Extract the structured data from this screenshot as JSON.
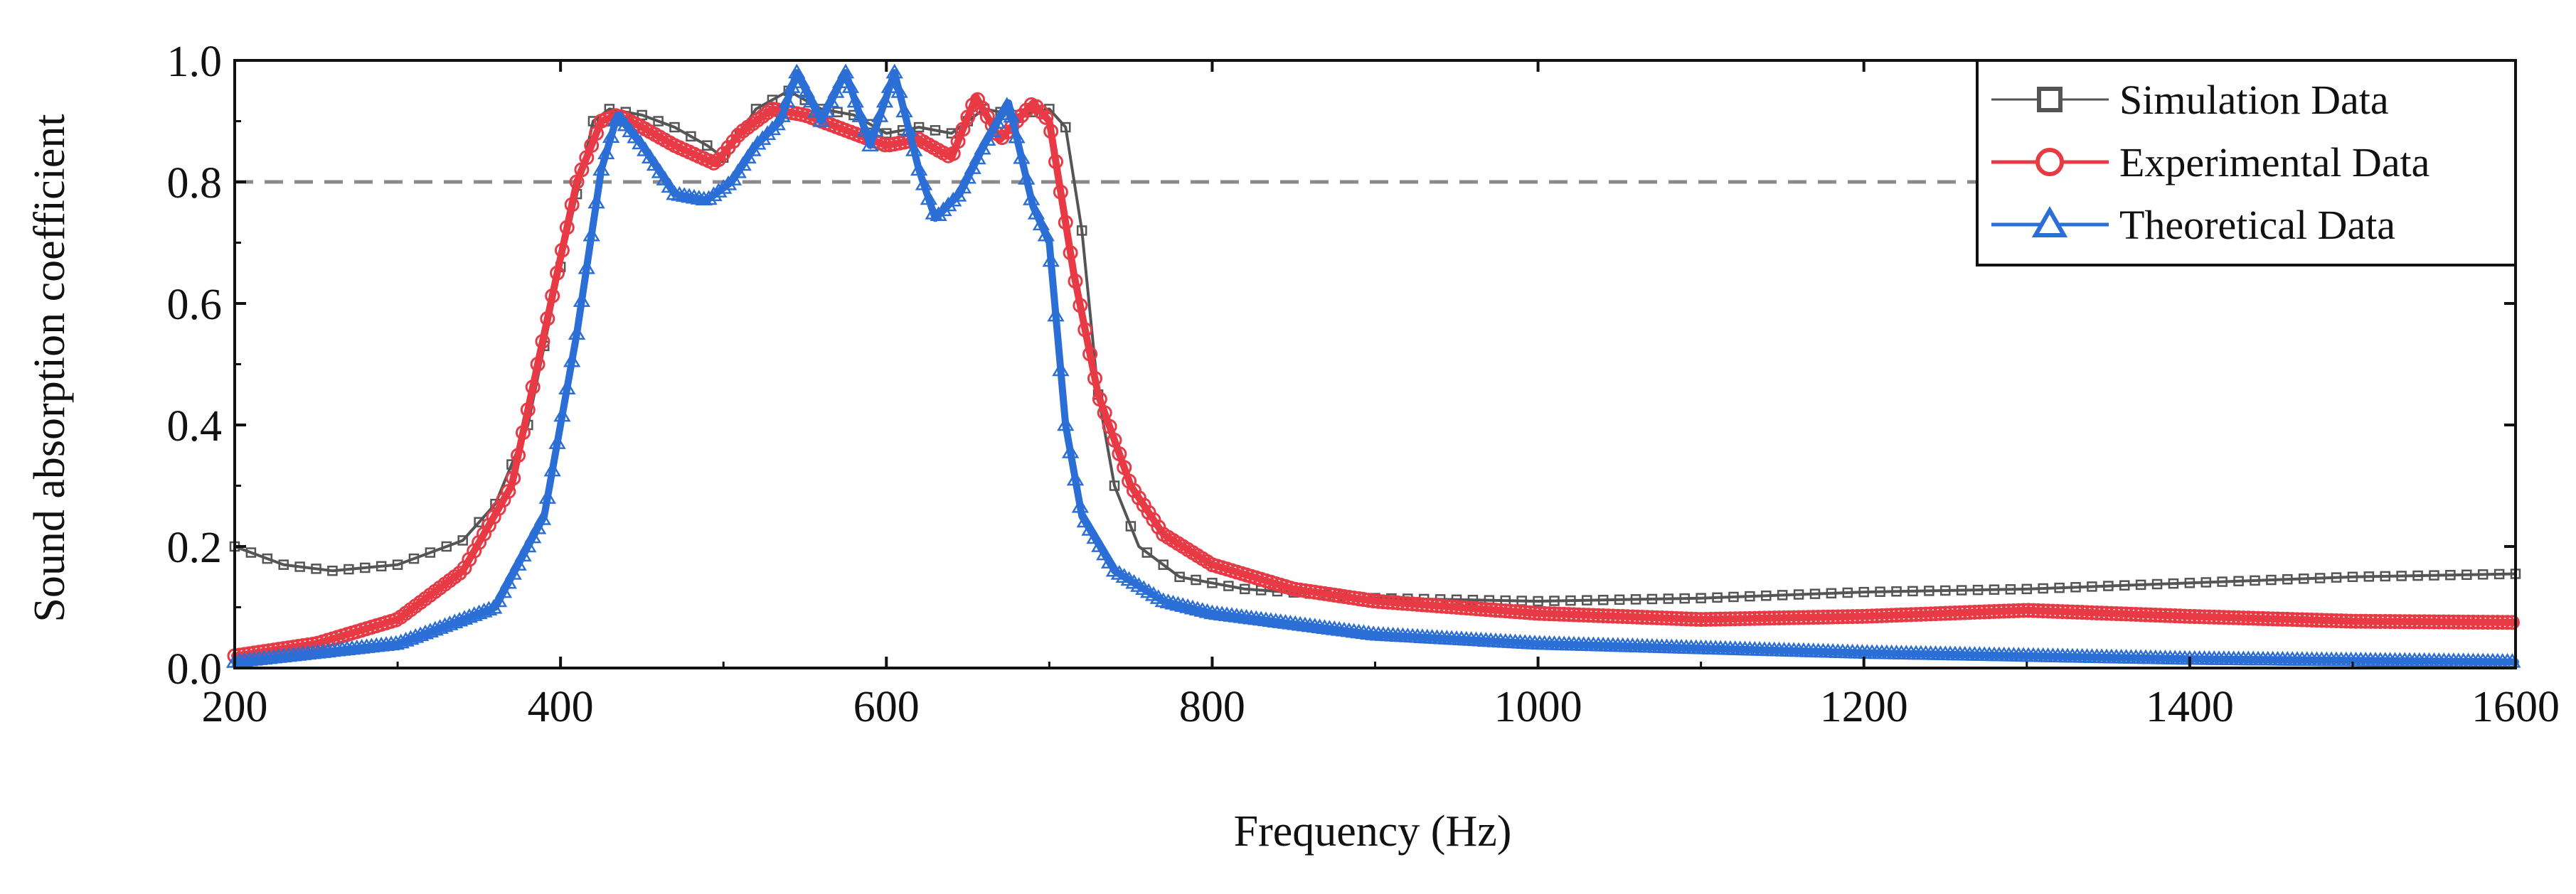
{
  "chart_data": {
    "type": "line",
    "title": "",
    "xlabel": "Frequency (Hz)",
    "ylabel": "Sound absorption coefficient",
    "xlim": [
      200,
      1600
    ],
    "ylim": [
      0.0,
      1.0
    ],
    "xticks": [
      200,
      400,
      600,
      800,
      1000,
      1200,
      1400,
      1600
    ],
    "xtick_labels": [
      "200",
      "400",
      "600",
      "800",
      "1000",
      "1200",
      "1400",
      "1600"
    ],
    "yticks": [
      0.0,
      0.2,
      0.4,
      0.6,
      0.8,
      1.0
    ],
    "ytick_labels": [
      "0.0",
      "0.2",
      "0.4",
      "0.6",
      "0.8",
      "1.0"
    ],
    "grid": false,
    "legend_position": "top-right",
    "reference_line": {
      "y": 0.8,
      "style": "dashed",
      "color": "#8a8a8a"
    },
    "series": [
      {
        "name": "Simulation Data",
        "color": "#555555",
        "marker": "square",
        "points": [
          [
            200,
            0.2
          ],
          [
            230,
            0.17
          ],
          [
            260,
            0.16
          ],
          [
            300,
            0.17
          ],
          [
            340,
            0.21
          ],
          [
            360,
            0.27
          ],
          [
            380,
            0.4
          ],
          [
            400,
            0.66
          ],
          [
            420,
            0.9
          ],
          [
            430,
            0.92
          ],
          [
            450,
            0.91
          ],
          [
            470,
            0.89
          ],
          [
            490,
            0.86
          ],
          [
            500,
            0.84
          ],
          [
            520,
            0.92
          ],
          [
            540,
            0.95
          ],
          [
            560,
            0.92
          ],
          [
            580,
            0.91
          ],
          [
            600,
            0.88
          ],
          [
            620,
            0.89
          ],
          [
            640,
            0.88
          ],
          [
            660,
            0.92
          ],
          [
            680,
            0.91
          ],
          [
            700,
            0.92
          ],
          [
            710,
            0.89
          ],
          [
            720,
            0.72
          ],
          [
            730,
            0.45
          ],
          [
            740,
            0.3
          ],
          [
            755,
            0.2
          ],
          [
            780,
            0.15
          ],
          [
            820,
            0.13
          ],
          [
            900,
            0.115
          ],
          [
            1000,
            0.11
          ],
          [
            1100,
            0.115
          ],
          [
            1200,
            0.125
          ],
          [
            1300,
            0.13
          ],
          [
            1400,
            0.14
          ],
          [
            1500,
            0.15
          ],
          [
            1600,
            0.155
          ]
        ]
      },
      {
        "name": "Experimental Data",
        "color": "#e83a45",
        "marker": "circle",
        "points": [
          [
            200,
            0.02
          ],
          [
            250,
            0.04
          ],
          [
            300,
            0.08
          ],
          [
            340,
            0.16
          ],
          [
            370,
            0.3
          ],
          [
            390,
            0.55
          ],
          [
            410,
            0.8
          ],
          [
            425,
            0.9
          ],
          [
            435,
            0.91
          ],
          [
            450,
            0.89
          ],
          [
            470,
            0.86
          ],
          [
            495,
            0.83
          ],
          [
            510,
            0.88
          ],
          [
            530,
            0.92
          ],
          [
            550,
            0.91
          ],
          [
            570,
            0.89
          ],
          [
            600,
            0.86
          ],
          [
            620,
            0.87
          ],
          [
            640,
            0.84
          ],
          [
            655,
            0.94
          ],
          [
            670,
            0.87
          ],
          [
            690,
            0.93
          ],
          [
            700,
            0.9
          ],
          [
            715,
            0.65
          ],
          [
            730,
            0.45
          ],
          [
            750,
            0.3
          ],
          [
            770,
            0.22
          ],
          [
            800,
            0.17
          ],
          [
            850,
            0.13
          ],
          [
            900,
            0.11
          ],
          [
            1000,
            0.09
          ],
          [
            1100,
            0.08
          ],
          [
            1200,
            0.085
          ],
          [
            1300,
            0.095
          ],
          [
            1400,
            0.085
          ],
          [
            1500,
            0.077
          ],
          [
            1600,
            0.075
          ]
        ]
      },
      {
        "name": "Theoretical Data",
        "color": "#2b6fd6",
        "marker": "triangle",
        "points": [
          [
            200,
            0.01
          ],
          [
            300,
            0.04
          ],
          [
            360,
            0.1
          ],
          [
            390,
            0.25
          ],
          [
            410,
            0.55
          ],
          [
            425,
            0.82
          ],
          [
            435,
            0.91
          ],
          [
            450,
            0.86
          ],
          [
            470,
            0.78
          ],
          [
            490,
            0.77
          ],
          [
            505,
            0.8
          ],
          [
            520,
            0.86
          ],
          [
            535,
            0.9
          ],
          [
            545,
            0.98
          ],
          [
            560,
            0.9
          ],
          [
            575,
            0.98
          ],
          [
            590,
            0.86
          ],
          [
            605,
            0.98
          ],
          [
            620,
            0.82
          ],
          [
            630,
            0.74
          ],
          [
            645,
            0.78
          ],
          [
            660,
            0.86
          ],
          [
            675,
            0.93
          ],
          [
            690,
            0.76
          ],
          [
            700,
            0.7
          ],
          [
            710,
            0.4
          ],
          [
            720,
            0.25
          ],
          [
            740,
            0.16
          ],
          [
            770,
            0.11
          ],
          [
            800,
            0.09
          ],
          [
            900,
            0.055
          ],
          [
            1000,
            0.04
          ],
          [
            1200,
            0.025
          ],
          [
            1400,
            0.015
          ],
          [
            1600,
            0.01
          ]
        ]
      }
    ]
  }
}
